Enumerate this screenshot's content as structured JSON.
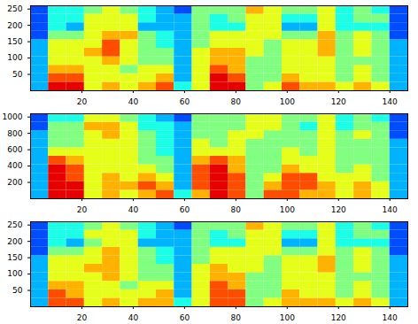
{
  "chart_data": [
    {
      "type": "heatmap",
      "x_edges": [
        0,
        7,
        14,
        21,
        28,
        35,
        42,
        49,
        56,
        63,
        70,
        77,
        84,
        91,
        98,
        105,
        112,
        119,
        126,
        133,
        140,
        147
      ],
      "y_edges": [
        0,
        26,
        52,
        78,
        104,
        130,
        156,
        182,
        208,
        234,
        260
      ],
      "xlim": [
        0,
        147
      ],
      "ylim": [
        0,
        260
      ],
      "xticks": [
        20,
        40,
        60,
        80,
        100,
        120,
        140
      ],
      "yticks": [
        50,
        100,
        150,
        200,
        250
      ],
      "zlim": [
        0,
        10
      ],
      "cells": [
        [
          3,
          9,
          9,
          6,
          7,
          6,
          7,
          8,
          4,
          6,
          9,
          9,
          5,
          6,
          8,
          7,
          7,
          6,
          7,
          6,
          3
        ],
        [
          3,
          8,
          8,
          6,
          6,
          6,
          6,
          7,
          3,
          6,
          9,
          8,
          5,
          5,
          7,
          6,
          6,
          5,
          6,
          5,
          3
        ],
        [
          3,
          7,
          7,
          6,
          6,
          5,
          6,
          6,
          3,
          6,
          8,
          7,
          5,
          5,
          6,
          6,
          6,
          5,
          6,
          5,
          3
        ],
        [
          3,
          6,
          6,
          6,
          7,
          6,
          5,
          5,
          3,
          6,
          7,
          7,
          5,
          5,
          6,
          6,
          6,
          5,
          5,
          5,
          3
        ],
        [
          3,
          6,
          6,
          7,
          8,
          6,
          5,
          5,
          3,
          6,
          7,
          7,
          6,
          5,
          6,
          6,
          7,
          5,
          6,
          5,
          3
        ],
        [
          3,
          6,
          6,
          6,
          8,
          6,
          5,
          4,
          3,
          5,
          6,
          6,
          6,
          5,
          6,
          6,
          7,
          5,
          6,
          5,
          3
        ],
        [
          2,
          5,
          5,
          6,
          7,
          7,
          5,
          4,
          3,
          5,
          6,
          6,
          6,
          6,
          5,
          5,
          7,
          5,
          6,
          5,
          2
        ],
        [
          2,
          4,
          3,
          6,
          6,
          6,
          3,
          3,
          3,
          5,
          4,
          4,
          6,
          6,
          3,
          3,
          6,
          4,
          4,
          4,
          2
        ],
        [
          2,
          4,
          4,
          6,
          6,
          6,
          4,
          3,
          3,
          5,
          4,
          5,
          6,
          6,
          4,
          4,
          6,
          4,
          5,
          5,
          2
        ],
        [
          2,
          4,
          4,
          5,
          6,
          5,
          4,
          3,
          2,
          5,
          5,
          5,
          7,
          6,
          5,
          5,
          6,
          4,
          5,
          4,
          2
        ]
      ]
    },
    {
      "type": "heatmap",
      "x_edges": [
        0,
        7,
        14,
        21,
        28,
        35,
        42,
        49,
        56,
        63,
        70,
        77,
        84,
        91,
        98,
        105,
        112,
        119,
        126,
        133,
        140,
        147
      ],
      "y_edges": [
        0,
        104,
        208,
        312,
        416,
        520,
        624,
        728,
        832,
        936,
        1040
      ],
      "xlim": [
        0,
        147
      ],
      "ylim": [
        0,
        1040
      ],
      "xticks": [
        20,
        40,
        60,
        80,
        100,
        120,
        140
      ],
      "yticks": [
        200,
        400,
        600,
        800,
        1000
      ],
      "zlim": [
        0,
        10
      ],
      "cells": [
        [
          3,
          9,
          9,
          6,
          7,
          6,
          7,
          8,
          4,
          7,
          9,
          8,
          5,
          8,
          8,
          7,
          7,
          6,
          7,
          6,
          3
        ],
        [
          3,
          9,
          9,
          6,
          7,
          7,
          8,
          7,
          3,
          8,
          9,
          8,
          5,
          7,
          8,
          8,
          7,
          6,
          7,
          6,
          3
        ],
        [
          3,
          9,
          8,
          6,
          7,
          6,
          7,
          6,
          3,
          8,
          9,
          8,
          5,
          6,
          8,
          8,
          6,
          6,
          6,
          5,
          3
        ],
        [
          3,
          9,
          8,
          6,
          6,
          6,
          6,
          5,
          3,
          8,
          9,
          7,
          5,
          5,
          7,
          6,
          6,
          5,
          6,
          5,
          3
        ],
        [
          3,
          8,
          7,
          6,
          6,
          6,
          5,
          5,
          3,
          7,
          8,
          7,
          5,
          5,
          6,
          6,
          6,
          5,
          5,
          5,
          3
        ],
        [
          3,
          6,
          6,
          6,
          6,
          6,
          5,
          4,
          3,
          6,
          6,
          6,
          5,
          5,
          6,
          5,
          6,
          5,
          5,
          5,
          3
        ],
        [
          3,
          5,
          5,
          6,
          6,
          6,
          5,
          4,
          3,
          6,
          5,
          6,
          5,
          5,
          5,
          5,
          6,
          5,
          5,
          5,
          3
        ],
        [
          3,
          5,
          5,
          6,
          7,
          6,
          5,
          4,
          3,
          5,
          5,
          6,
          6,
          5,
          5,
          5,
          6,
          5,
          6,
          5,
          2
        ],
        [
          2,
          5,
          5,
          7,
          7,
          6,
          4,
          4,
          3,
          5,
          5,
          5,
          6,
          6,
          5,
          4,
          6,
          4,
          5,
          5,
          2
        ],
        [
          2,
          4,
          4,
          6,
          6,
          5,
          4,
          3,
          2,
          5,
          5,
          5,
          6,
          6,
          5,
          5,
          6,
          4,
          5,
          4,
          2
        ]
      ]
    },
    {
      "type": "heatmap",
      "x_edges": [
        0,
        7,
        14,
        21,
        28,
        35,
        42,
        49,
        56,
        63,
        70,
        77,
        84,
        91,
        98,
        105,
        112,
        119,
        126,
        133,
        140,
        147
      ],
      "y_edges": [
        0,
        26,
        52,
        78,
        104,
        130,
        156,
        182,
        208,
        234,
        260
      ],
      "xlim": [
        0,
        147
      ],
      "ylim": [
        0,
        260
      ],
      "xticks": [
        20,
        40,
        60,
        80,
        100,
        120,
        140
      ],
      "yticks": [
        50,
        100,
        150,
        200,
        250
      ],
      "zlim": [
        0,
        10
      ],
      "cells": [
        [
          3,
          8,
          8,
          6,
          7,
          6,
          7,
          7,
          4,
          6,
          8,
          8,
          5,
          6,
          7,
          7,
          7,
          6,
          7,
          6,
          3
        ],
        [
          3,
          8,
          7,
          6,
          6,
          6,
          6,
          7,
          3,
          6,
          8,
          8,
          5,
          5,
          7,
          6,
          6,
          5,
          6,
          5,
          3
        ],
        [
          3,
          7,
          7,
          6,
          6,
          5,
          6,
          6,
          3,
          6,
          8,
          7,
          5,
          5,
          6,
          6,
          6,
          5,
          6,
          5,
          3
        ],
        [
          3,
          6,
          6,
          6,
          7,
          6,
          5,
          5,
          3,
          6,
          7,
          7,
          5,
          5,
          6,
          6,
          6,
          5,
          5,
          5,
          3
        ],
        [
          3,
          6,
          6,
          7,
          7,
          6,
          5,
          5,
          3,
          6,
          7,
          6,
          6,
          5,
          6,
          6,
          7,
          5,
          6,
          5,
          3
        ],
        [
          3,
          6,
          6,
          6,
          7,
          6,
          5,
          4,
          3,
          5,
          6,
          6,
          6,
          5,
          6,
          6,
          7,
          5,
          6,
          5,
          3
        ],
        [
          2,
          5,
          5,
          6,
          7,
          6,
          5,
          4,
          3,
          5,
          6,
          6,
          6,
          6,
          5,
          5,
          6,
          5,
          6,
          5,
          2
        ],
        [
          2,
          4,
          3,
          5,
          6,
          6,
          3,
          3,
          3,
          5,
          4,
          4,
          6,
          6,
          3,
          3,
          6,
          4,
          4,
          4,
          2
        ],
        [
          2,
          4,
          4,
          6,
          6,
          6,
          4,
          3,
          3,
          5,
          4,
          5,
          6,
          6,
          4,
          4,
          6,
          4,
          5,
          5,
          2
        ],
        [
          2,
          4,
          4,
          5,
          6,
          5,
          4,
          3,
          2,
          5,
          5,
          5,
          7,
          6,
          5,
          5,
          6,
          4,
          5,
          4,
          2
        ]
      ]
    }
  ]
}
